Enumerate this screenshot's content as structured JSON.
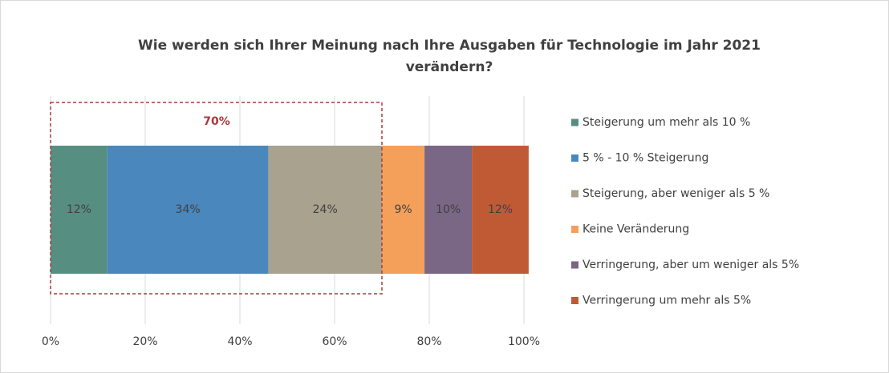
{
  "chart_data": {
    "type": "stacked_bar_horizontal",
    "title": "Wie werden sich Ihrer Meinung nach Ihre Ausgaben für Technologie im Jahr 2021 verändern?",
    "categories": [
      null
    ],
    "series": [
      {
        "name": "Steigerung um mehr als 10 %",
        "color": "#568f82",
        "values": [
          12
        ],
        "value_labels": [
          "12%"
        ]
      },
      {
        "name": "5 % - 10 % Steigerung",
        "color": "#4a87bd",
        "values": [
          34
        ],
        "value_labels": [
          "34%"
        ]
      },
      {
        "name": "Steigerung, aber weniger als 5 %",
        "color": "#a8a28f",
        "values": [
          24
        ],
        "value_labels": [
          "24%"
        ]
      },
      {
        "name": "Keine Veränderung",
        "color": "#f5a05a",
        "values": [
          9
        ],
        "value_labels": [
          "9%"
        ]
      },
      {
        "name": "Verringerung, aber um weniger als 5%",
        "color": "#7a6685",
        "values": [
          10
        ],
        "value_labels": [
          "10%"
        ]
      },
      {
        "name": "Verringerung um mehr als 5%",
        "color": "#c05a34",
        "values": [
          12
        ],
        "value_labels": [
          "12%"
        ]
      }
    ],
    "xlim": [
      0,
      100
    ],
    "xticks": [
      {
        "value": 0,
        "label": "0%"
      },
      {
        "value": 20,
        "label": "20%"
      },
      {
        "value": 40,
        "label": "40%"
      },
      {
        "value": 60,
        "label": "60%"
      },
      {
        "value": 80,
        "label": "80%"
      },
      {
        "value": 100,
        "label": "100%"
      }
    ],
    "grid": true,
    "legend": "right",
    "annotation": {
      "label": "70%",
      "value": 70,
      "color": "#a83a3a"
    }
  }
}
